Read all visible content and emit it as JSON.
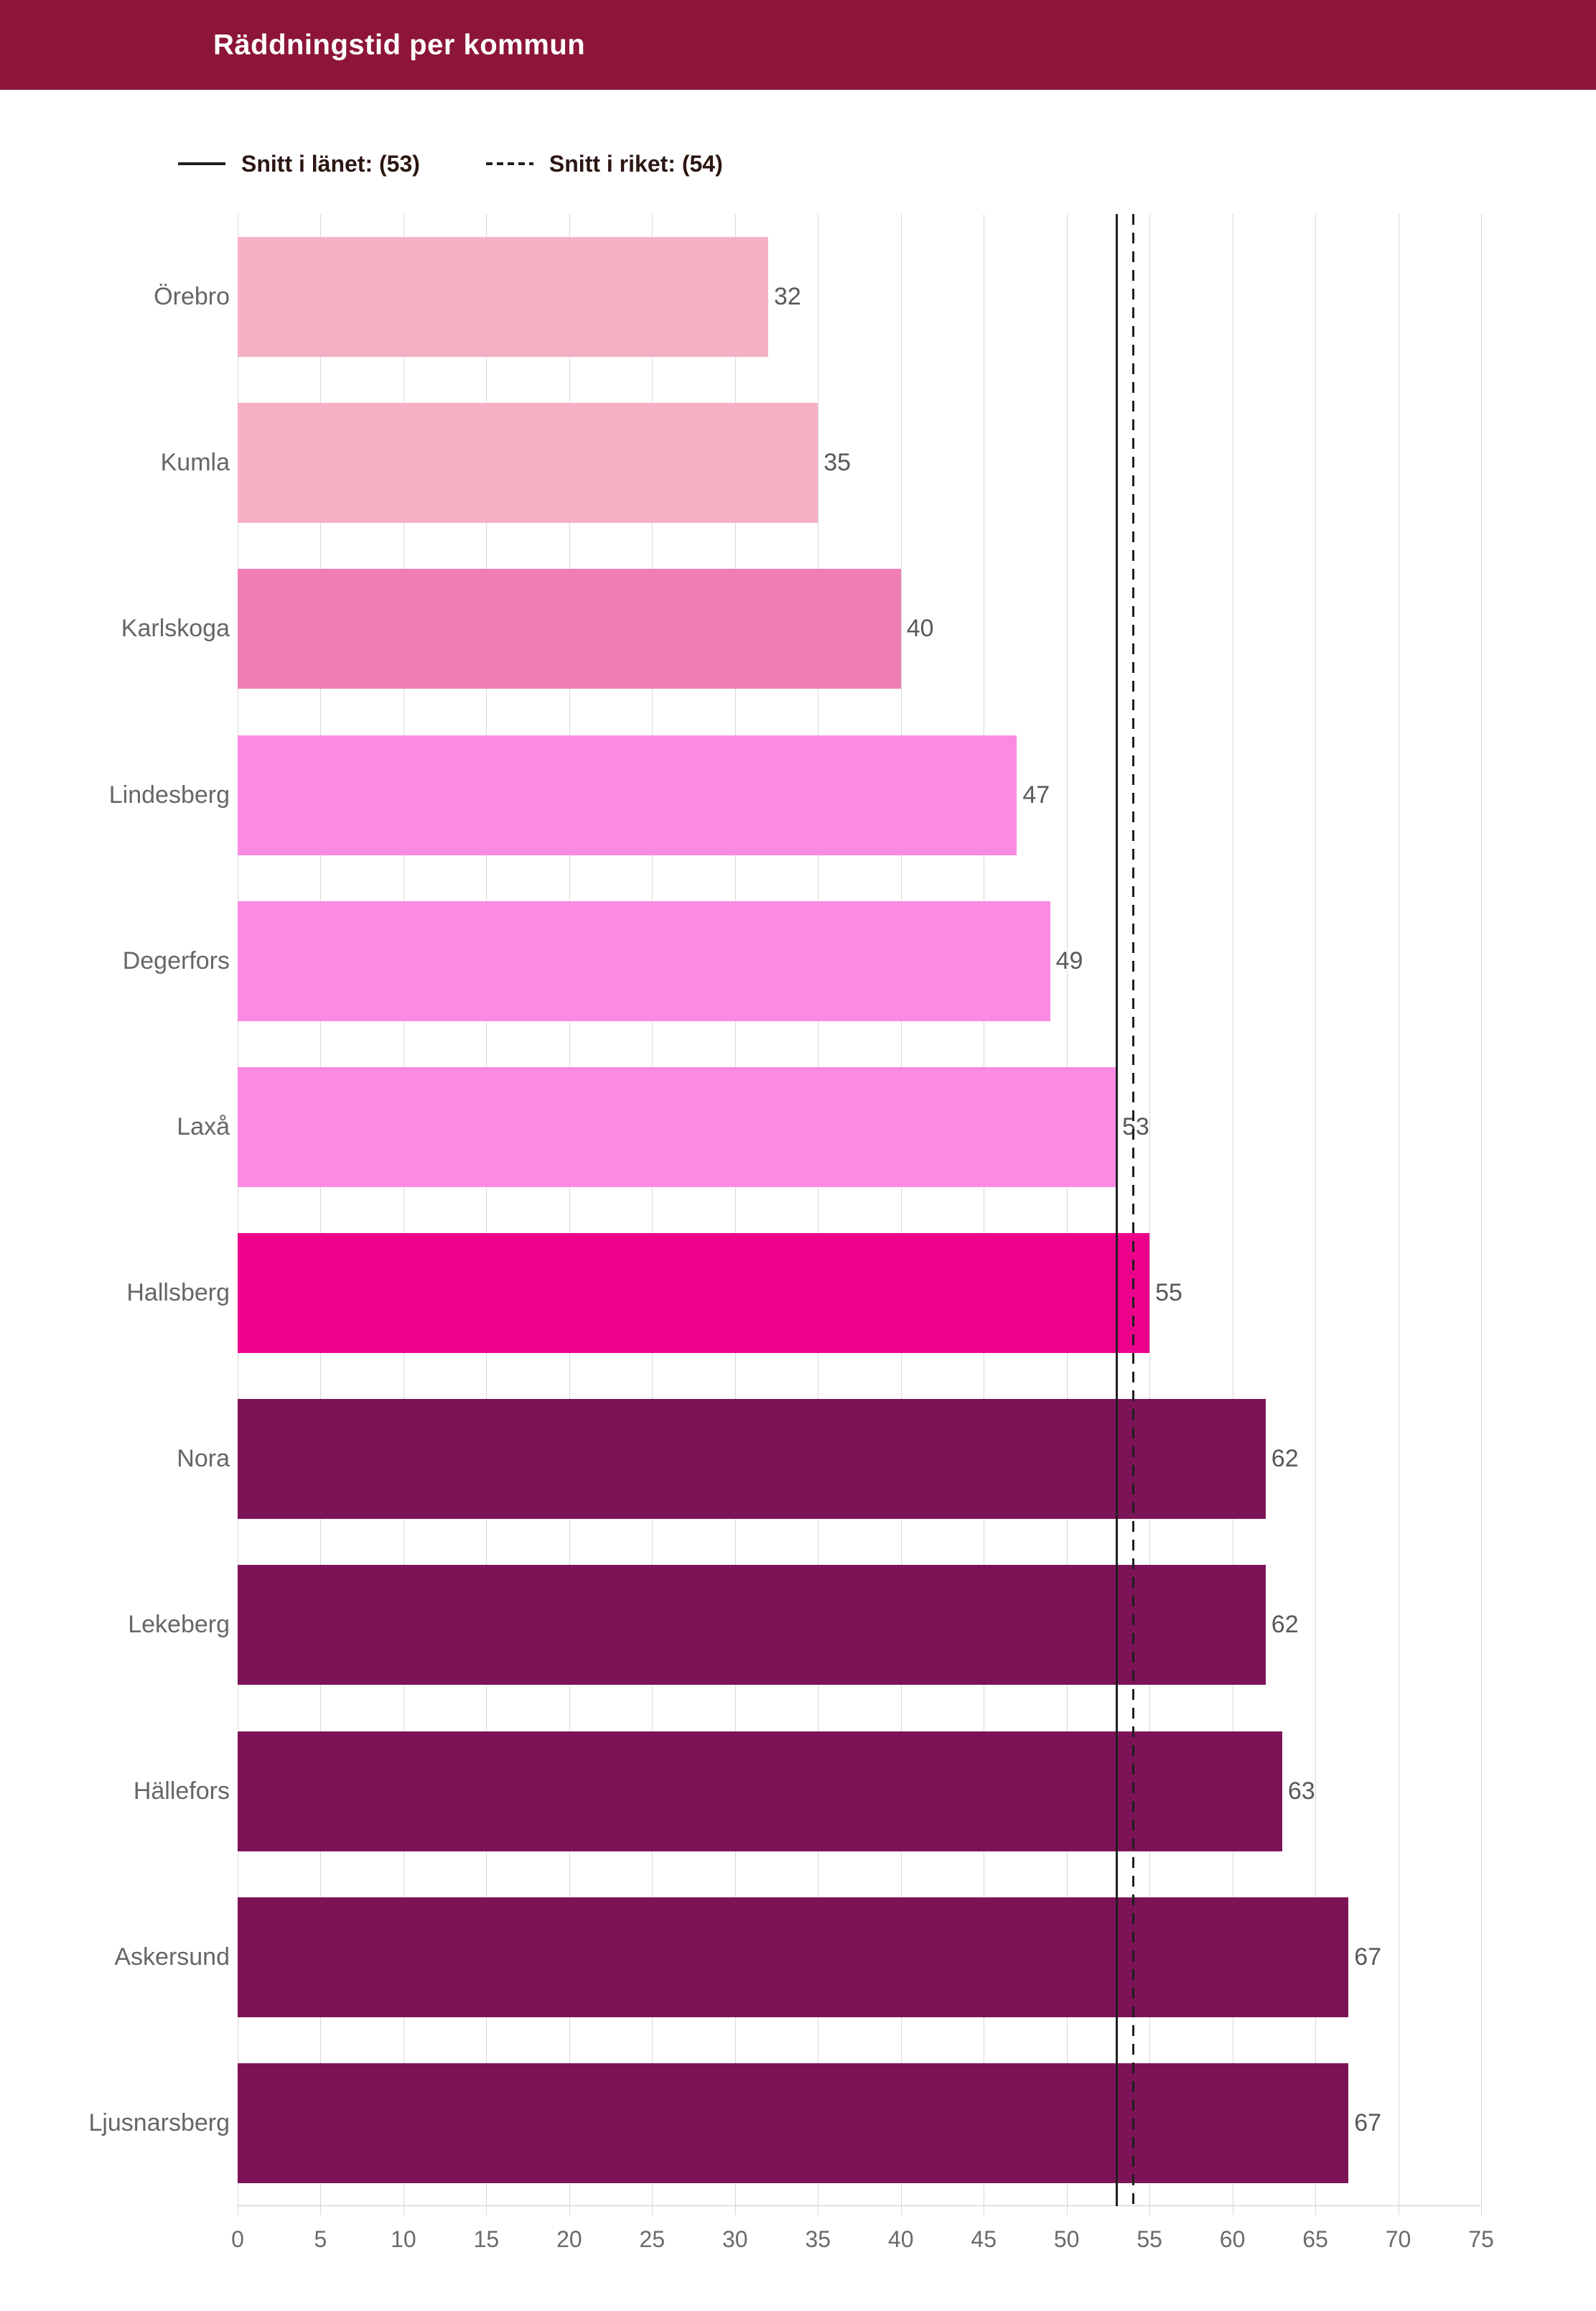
{
  "header": {
    "title": "Räddningstid per kommun"
  },
  "legend": {
    "items": [
      {
        "id": "county",
        "label": "Snitt i länet: (53)",
        "style": "solid"
      },
      {
        "id": "nation",
        "label": "Snitt i riket: (54)",
        "style": "dashed"
      }
    ]
  },
  "chart_data": {
    "type": "bar",
    "orientation": "horizontal",
    "title": "Räddningstid per kommun",
    "categories": [
      "Örebro",
      "Kumla",
      "Karlskoga",
      "Lindesberg",
      "Degerfors",
      "Laxå",
      "Hallsberg",
      "Nora",
      "Lekeberg",
      "Hällefors",
      "Askersund",
      "Ljusnarsberg"
    ],
    "values": [
      32,
      35,
      40,
      47,
      49,
      53,
      55,
      62,
      62,
      63,
      67,
      67
    ],
    "bar_colors": [
      "#f6b0c4",
      "#f6b0c4",
      "#f07eb4",
      "#fa8ae2",
      "#fa8ae2",
      "#fa8ae2",
      "#ec008c",
      "#7c1356",
      "#7c1356",
      "#7c1356",
      "#7c1356",
      "#7c1356"
    ],
    "xlim": [
      0,
      75
    ],
    "xticks": [
      0,
      5,
      10,
      15,
      20,
      25,
      30,
      35,
      40,
      45,
      50,
      55,
      60,
      65,
      70,
      75
    ],
    "xlabel": "",
    "ylabel": "",
    "grid": true,
    "legend_position": "top-left",
    "reference_lines": [
      {
        "name": "Snitt i länet",
        "value": 53,
        "style": "solid"
      },
      {
        "name": "Snitt i riket",
        "value": 54,
        "style": "dashed"
      }
    ]
  },
  "colors": {
    "header_background": "#8c1538",
    "header_text": "#ffffff",
    "legend_text": "#2b1612",
    "category_text": "#666666",
    "value_text": "#595959",
    "tick_text": "#6b6b6b",
    "gridline": "#d8d8d8",
    "axis_line": "#cccccc",
    "reference_line": "#1f1f1f"
  }
}
